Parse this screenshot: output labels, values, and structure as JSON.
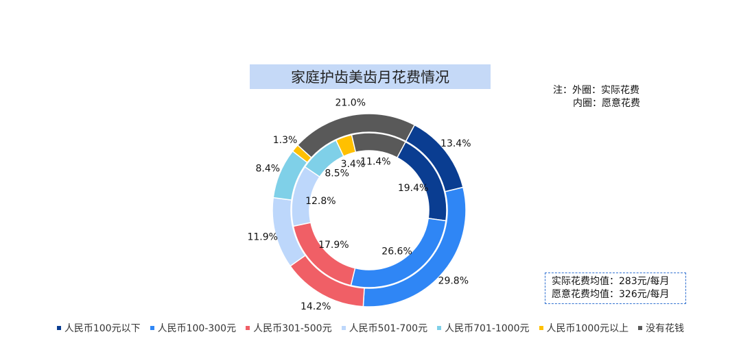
{
  "chart_data": {
    "type": "donut",
    "title": "家庭护齿美齿月花费情况",
    "categories": [
      "人民币100元以下",
      "人民币100-300元",
      "人民币301-500元",
      "人民币501-700元",
      "人民币701-1000元",
      "人民币1000元以上",
      "没有花钱"
    ],
    "colors": [
      "#0a3d91",
      "#2f86f5",
      "#f05f66",
      "#bdd7fb",
      "#7fd0e8",
      "#ffc000",
      "#595959"
    ],
    "series": [
      {
        "name": "外圈：实际花费",
        "values": [
          13.4,
          29.8,
          14.2,
          11.9,
          8.4,
          1.3,
          21.0
        ],
        "labels": [
          "13.4%",
          "29.8%",
          "14.2%",
          "11.9%",
          "8.4%",
          "1.3%",
          "21.0%"
        ]
      },
      {
        "name": "内圈：愿意花费",
        "values": [
          19.4,
          26.6,
          17.9,
          12.8,
          8.5,
          3.4,
          11.4
        ],
        "labels": [
          "19.4%",
          "26.6%",
          "17.9%",
          "12.8%",
          "8.5%",
          "3.4%",
          "11.4%"
        ]
      }
    ],
    "legend_position": "bottom"
  },
  "note": {
    "line1": "注：外圈：实际花费",
    "line2": "内圈：愿意花费"
  },
  "averages": {
    "actual": "实际花费均值：283元/每月",
    "willing": "愿意花费均值：326元/每月"
  }
}
